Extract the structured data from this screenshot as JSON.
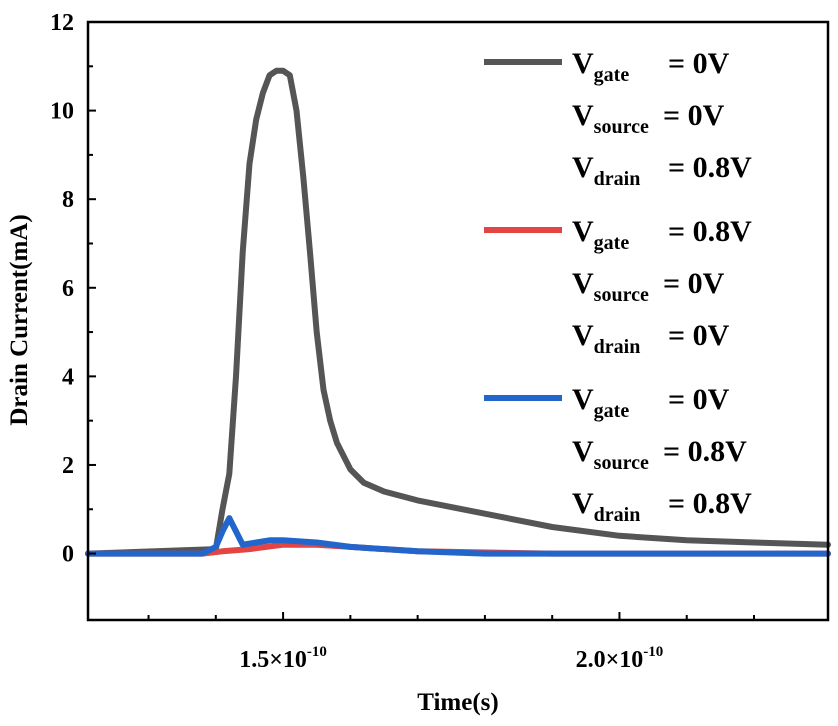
{
  "chart_data": {
    "type": "line",
    "title": "",
    "xlabel": "Time(s)",
    "ylabel": "Drain Current(mA)",
    "xlim": [
      1.21e-10,
      2.31e-10
    ],
    "ylim": [
      -1.5,
      12
    ],
    "x_ticks": [
      {
        "value": 1.5e-10,
        "mantissa": "1.5×10",
        "exp": "-10"
      },
      {
        "value": 2e-10,
        "mantissa": "2.0×10",
        "exp": "-10"
      }
    ],
    "y_ticks": [
      {
        "value": 0,
        "label": "0"
      },
      {
        "value": 2,
        "label": "2"
      },
      {
        "value": 4,
        "label": "4"
      },
      {
        "value": 6,
        "label": "6"
      },
      {
        "value": 8,
        "label": "8"
      },
      {
        "value": 10,
        "label": "10"
      },
      {
        "value": 12,
        "label": "12"
      }
    ],
    "series": [
      {
        "name": "gray",
        "color": "#555555",
        "legend": [
          {
            "sub": "gate",
            "value": "= 0V"
          },
          {
            "sub": "source",
            "value": "= 0V"
          },
          {
            "sub": "drain",
            "value": "= 0.8V"
          }
        ],
        "x": [
          1.21e-10,
          1.4e-10,
          1.41e-10,
          1.42e-10,
          1.43e-10,
          1.44e-10,
          1.45e-10,
          1.46e-10,
          1.47e-10,
          1.48e-10,
          1.49e-10,
          1.5e-10,
          1.51e-10,
          1.52e-10,
          1.53e-10,
          1.54e-10,
          1.55e-10,
          1.56e-10,
          1.57e-10,
          1.58e-10,
          1.6e-10,
          1.62e-10,
          1.65e-10,
          1.7e-10,
          1.8e-10,
          1.9e-10,
          2e-10,
          2.1e-10,
          2.2e-10,
          2.31e-10
        ],
        "y": [
          0.0,
          0.1,
          1.0,
          1.8,
          4.0,
          6.8,
          8.8,
          9.8,
          10.4,
          10.8,
          10.9,
          10.9,
          10.8,
          10.0,
          8.5,
          6.8,
          5.0,
          3.7,
          3.0,
          2.5,
          1.9,
          1.6,
          1.4,
          1.2,
          0.9,
          0.6,
          0.4,
          0.3,
          0.25,
          0.2
        ]
      },
      {
        "name": "red",
        "color": "#e34444",
        "legend": [
          {
            "sub": "gate",
            "value": "= 0.8V"
          },
          {
            "sub": "source",
            "value": "= 0V"
          },
          {
            "sub": "drain",
            "value": "= 0V"
          }
        ],
        "x": [
          1.21e-10,
          1.38e-10,
          1.41e-10,
          1.45e-10,
          1.5e-10,
          1.55e-10,
          1.6e-10,
          1.7e-10,
          1.9e-10,
          2.1e-10,
          2.31e-10
        ],
        "y": [
          0.0,
          0.0,
          0.05,
          0.1,
          0.2,
          0.2,
          0.15,
          0.05,
          0.0,
          0.0,
          0.0
        ]
      },
      {
        "name": "blue",
        "color": "#2266cc",
        "legend": [
          {
            "sub": "gate",
            "value": "= 0V"
          },
          {
            "sub": "source",
            "value": "= 0.8V"
          },
          {
            "sub": "drain",
            "value": "= 0.8V"
          }
        ],
        "x": [
          1.21e-10,
          1.38e-10,
          1.4e-10,
          1.41e-10,
          1.42e-10,
          1.43e-10,
          1.44e-10,
          1.46e-10,
          1.48e-10,
          1.5e-10,
          1.55e-10,
          1.6e-10,
          1.7e-10,
          1.8e-10,
          2e-10,
          2.31e-10
        ],
        "y": [
          0.0,
          0.0,
          0.15,
          0.5,
          0.8,
          0.5,
          0.2,
          0.25,
          0.3,
          0.3,
          0.25,
          0.15,
          0.05,
          0.0,
          0.0,
          0.0
        ]
      }
    ]
  }
}
